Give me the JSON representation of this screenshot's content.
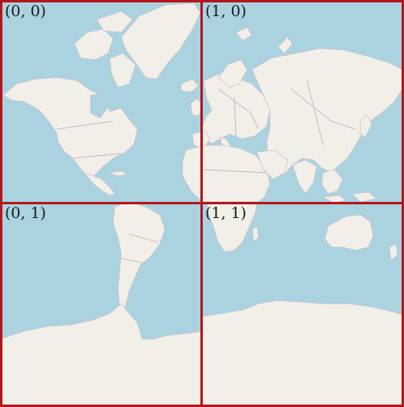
{
  "map": {
    "style": "world-map-tiles",
    "colors": {
      "water": "#aad3df",
      "land": "#f2efe9",
      "borders": "#b9a9c4",
      "tile_outline": "#b3161c",
      "label_text": "#1a1a1a"
    },
    "tiles": [
      {
        "label": "(0, 0)"
      },
      {
        "label": "(1, 0)"
      },
      {
        "label": "(0, 1)"
      },
      {
        "label": "(1, 1)"
      }
    ]
  }
}
